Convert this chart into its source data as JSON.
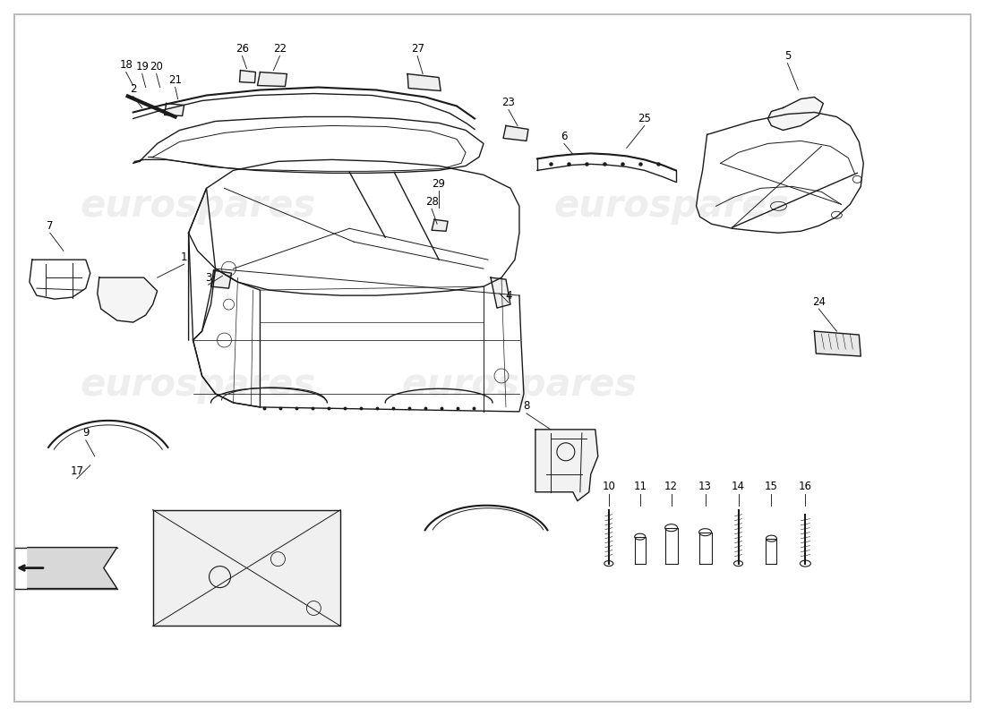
{
  "background_color": "#ffffff",
  "border_color": "#b0b0b0",
  "watermark_text": "eurospares",
  "watermark_color": "#c8c8c8",
  "watermark_alpha": 0.3,
  "line_color": "#1a1a1a",
  "label_color": "#000000",
  "label_fontsize": 8.5,
  "figsize": [
    11.0,
    8.0
  ],
  "dpi": 100
}
